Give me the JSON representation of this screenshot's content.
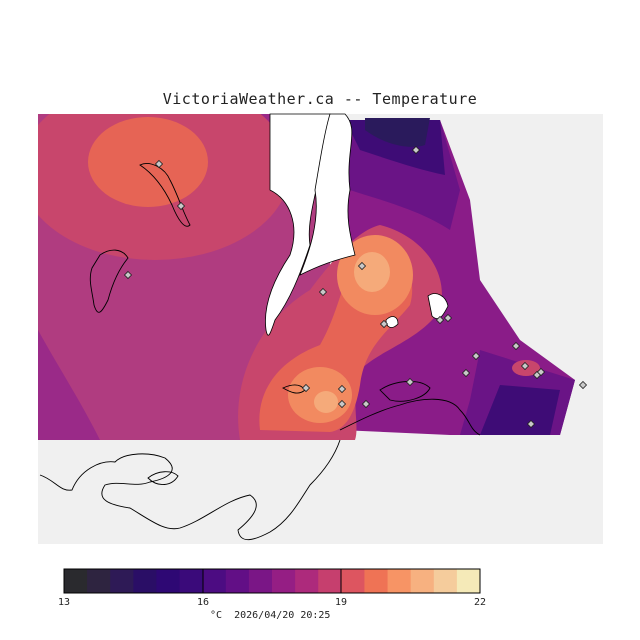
{
  "title": "VictoriaWeather.ca -- Temperature",
  "legend": {
    "ticks": [
      "13",
      "16",
      "19",
      "22"
    ],
    "unit": "°C",
    "timestamp": "2026/04/20 20:25",
    "colors": [
      "#2a2a2e",
      "#2e2440",
      "#2e1a56",
      "#2a0e66",
      "#2e0874",
      "#3a0a7a",
      "#4c0c82",
      "#620f86",
      "#7a1686",
      "#951e84",
      "#ad2a7c",
      "#c63f6e",
      "#dd5560",
      "#ef7355",
      "#f79465",
      "#f7b180",
      "#f5cc9c",
      "#f5eab8"
    ]
  },
  "map": {
    "colors": {
      "background": "#f0f0f0",
      "base": "#b03c80",
      "west": "#9a2a88",
      "cold_core": "#2a1a5c",
      "cold": "#3e0c76",
      "cool": "#6a1486",
      "mild": "#8a1c88",
      "warm": "#c8466c",
      "warmer": "#e66455",
      "hot": "#f28a60",
      "hottest": "#f5aa7a",
      "water": "#ffffff",
      "coast": "#000000"
    },
    "stations": 22
  }
}
